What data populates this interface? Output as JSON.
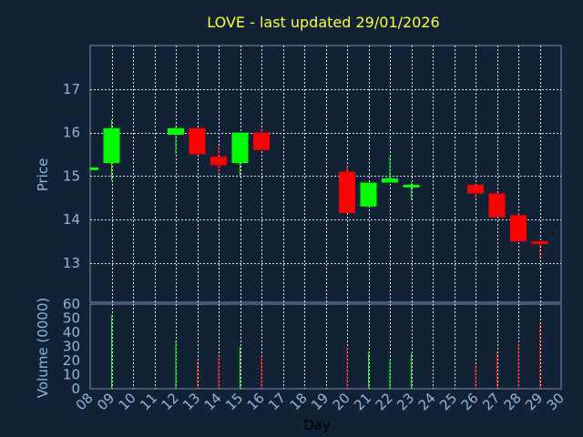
{
  "chart_data": {
    "type": "candlestick",
    "title": "LOVE - last updated 29/01/2026",
    "ylabel": "Price",
    "volume_label": "Volume (0000)",
    "xlabel": "Day",
    "colors": {
      "up": "#00ff00",
      "down": "#ff0000",
      "background": "#112237",
      "title": "#ffff33",
      "axis_text": "#8fb7de"
    },
    "price_ylim": [
      12.1,
      18.0
    ],
    "price_ticks": [
      "13",
      "14",
      "15",
      "16",
      "17"
    ],
    "volume_ylim": [
      0,
      60
    ],
    "volume_ticks": [
      "0",
      "10",
      "20",
      "30",
      "40",
      "50",
      "60"
    ],
    "x_ticks": [
      "08",
      "09",
      "10",
      "11",
      "12",
      "13",
      "14",
      "15",
      "16",
      "17",
      "18",
      "19",
      "20",
      "21",
      "22",
      "23",
      "24",
      "25",
      "26",
      "27",
      "28",
      "29",
      "30"
    ],
    "grid": true,
    "candles": [
      {
        "day": "08",
        "open": 15.15,
        "close": 15.2,
        "high": 15.2,
        "low": 15.15,
        "volume": 0
      },
      {
        "day": "09",
        "open": 15.3,
        "close": 16.1,
        "high": 16.3,
        "low": 14.9,
        "volume": 52
      },
      {
        "day": "12",
        "open": 15.95,
        "close": 16.1,
        "high": 16.15,
        "low": 15.5,
        "volume": 34
      },
      {
        "day": "13",
        "open": 16.1,
        "close": 15.5,
        "high": 16.1,
        "low": 15.5,
        "volume": 19
      },
      {
        "day": "14",
        "open": 15.45,
        "close": 15.25,
        "high": 15.7,
        "low": 15.05,
        "volume": 25
      },
      {
        "day": "15",
        "open": 15.3,
        "close": 16.0,
        "high": 16.0,
        "low": 15.0,
        "volume": 30
      },
      {
        "day": "16",
        "open": 16.0,
        "close": 15.6,
        "high": 16.1,
        "low": 15.6,
        "volume": 23
      },
      {
        "day": "20",
        "open": 15.1,
        "close": 14.15,
        "high": 15.25,
        "low": 14.15,
        "volume": 29
      },
      {
        "day": "21",
        "open": 14.3,
        "close": 14.85,
        "high": 14.85,
        "low": 14.3,
        "volume": 26
      },
      {
        "day": "22",
        "open": 14.85,
        "close": 14.95,
        "high": 15.45,
        "low": 14.85,
        "volume": 21
      },
      {
        "day": "23",
        "open": 14.75,
        "close": 14.8,
        "high": 14.85,
        "low": 14.45,
        "volume": 25
      },
      {
        "day": "26",
        "open": 14.8,
        "close": 14.6,
        "high": 14.8,
        "low": 14.5,
        "volume": 17
      },
      {
        "day": "27",
        "open": 14.6,
        "close": 14.05,
        "high": 14.6,
        "low": 14.05,
        "volume": 26
      },
      {
        "day": "28",
        "open": 14.1,
        "close": 13.5,
        "high": 14.15,
        "low": 13.5,
        "volume": 32
      },
      {
        "day": "29",
        "open": 13.5,
        "close": 13.45,
        "high": 13.5,
        "low": 13.1,
        "volume": 47
      }
    ]
  }
}
